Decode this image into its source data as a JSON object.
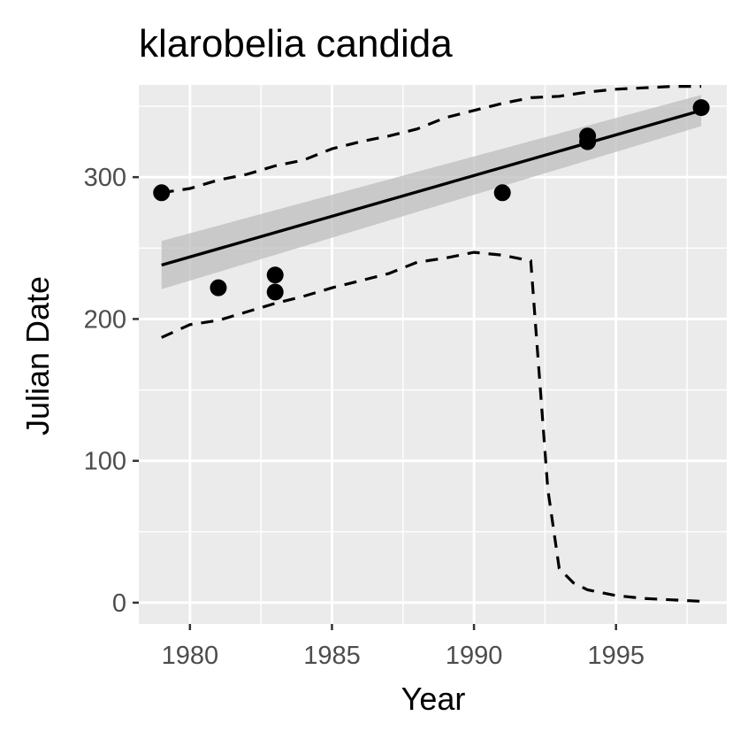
{
  "chart_data": {
    "type": "scatter",
    "title": "klarobelia candida",
    "xlabel": "Year",
    "ylabel": "Julian Date",
    "xlim": [
      1978.2,
      1998.9
    ],
    "ylim": [
      -15,
      365
    ],
    "x_ticks": [
      1980,
      1985,
      1990,
      1995
    ],
    "y_ticks": [
      0,
      100,
      200,
      300
    ],
    "grid": true,
    "legend": "none",
    "colors": {
      "panel": "#ebebeb",
      "grid": "#ffffff",
      "points": "#000000",
      "ribbon": "#bdbdbd",
      "tick": "#333333"
    },
    "points": [
      {
        "x": 1979,
        "y": 289
      },
      {
        "x": 1981,
        "y": 222
      },
      {
        "x": 1983,
        "y": 231
      },
      {
        "x": 1983,
        "y": 219
      },
      {
        "x": 1991,
        "y": 289
      },
      {
        "x": 1994,
        "y": 329
      },
      {
        "x": 1994,
        "y": 325
      },
      {
        "x": 1998,
        "y": 349
      }
    ],
    "series": [
      {
        "role": "fit",
        "style": "solid",
        "x": [
          1979,
          1998
        ],
        "y": [
          238,
          347
        ]
      },
      {
        "role": "ribbon",
        "x": [
          1979,
          1998
        ],
        "lower": [
          221,
          336
        ],
        "upper": [
          255,
          358
        ]
      },
      {
        "role": "upper-quantile",
        "style": "dashed",
        "x": [
          1979,
          1980,
          1981,
          1982,
          1983,
          1984,
          1985,
          1986,
          1987,
          1988,
          1989,
          1990,
          1991,
          1992,
          1993,
          1994,
          1995,
          1996,
          1997,
          1998
        ],
        "y": [
          289,
          292,
          298,
          302,
          308,
          312,
          320,
          325,
          329,
          334,
          342,
          347,
          352,
          356,
          357,
          360,
          362,
          363,
          364,
          364
        ]
      },
      {
        "role": "lower-quantile",
        "style": "dashed",
        "x": [
          1979,
          1980,
          1981,
          1982,
          1983,
          1984,
          1985,
          1986,
          1987,
          1988,
          1989,
          1990,
          1991,
          1992,
          1992.3,
          1992.6,
          1993,
          1993.5,
          1994,
          1995,
          1996,
          1997,
          1998
        ],
        "y": [
          187,
          196,
          199,
          205,
          211,
          216,
          222,
          227,
          232,
          240,
          243,
          247,
          245,
          241,
          160,
          80,
          24,
          14,
          9,
          5,
          3,
          2,
          1
        ]
      }
    ]
  }
}
